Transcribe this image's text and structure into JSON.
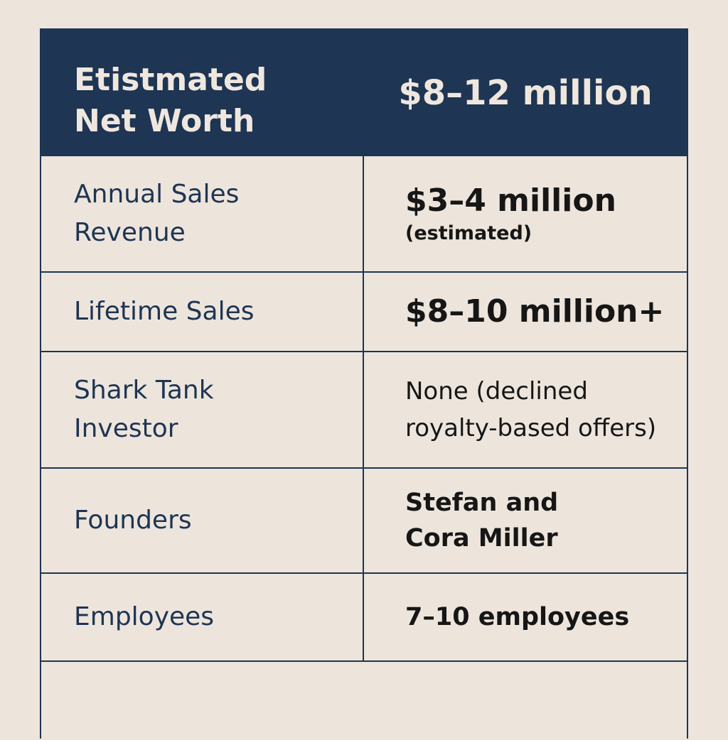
{
  "header": {
    "label_line1": "Etistmated",
    "label_line2": "Net Worth",
    "value": "$8–12 million"
  },
  "rows": [
    {
      "label_line1": "Annual Sales",
      "label_line2": "Revenue",
      "value_line1": "$3–4 million",
      "value_line2": "(estimated)"
    },
    {
      "label_line1": "Lifetime Sales",
      "value_line1": "$8–10 million+"
    },
    {
      "label_line1": "Shark Tank",
      "label_line2": "Investor",
      "value_line1": "None (declined",
      "value_line2": "royalty-based offers)"
    },
    {
      "label_line1": "Founders",
      "value_line1": "Stefan and",
      "value_line2": "Cora Miller"
    },
    {
      "label_line1": "Employees",
      "value_line1": "7–10 employees"
    }
  ]
}
